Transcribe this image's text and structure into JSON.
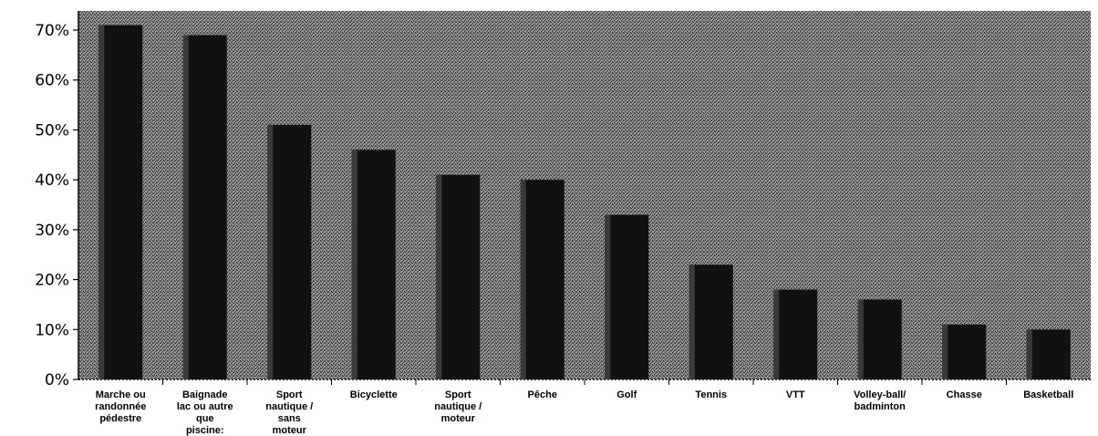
{
  "chart_data": {
    "type": "bar",
    "title": "",
    "xlabel": "",
    "ylabel": "",
    "ylim": [
      0,
      70
    ],
    "yticks": [
      0,
      10,
      20,
      30,
      40,
      50,
      60,
      70
    ],
    "ytick_labels": [
      "0%",
      "10%",
      "20%",
      "30%",
      "40%",
      "50%",
      "60%",
      "70%"
    ],
    "grid": false,
    "legend": "none",
    "categories": [
      "Marche ou randonnée pédestre",
      "Baignade lac ou autre que piscine:",
      "Sport nautique / sans moteur",
      "Bicyclette",
      "Sport nautique / moteur",
      "Pêche",
      "Golf",
      "Tennis",
      "VTT",
      "Volley-ball/ badminton",
      "Chasse",
      "Basketball"
    ],
    "category_label_lines": [
      [
        "Marche ou",
        "randonnée",
        "pédestre"
      ],
      [
        "Baignade",
        "lac ou autre",
        "que",
        "piscine:"
      ],
      [
        "Sport",
        "nautique /",
        "sans",
        "moteur"
      ],
      [
        "Bicyclette"
      ],
      [
        "Sport",
        "nautique /",
        "moteur"
      ],
      [
        "Pêche"
      ],
      [
        "Golf"
      ],
      [
        "Tennis"
      ],
      [
        "VTT"
      ],
      [
        "Volley-ball/",
        "badminton"
      ],
      [
        "Chasse"
      ],
      [
        "Basketball"
      ]
    ],
    "values": [
      71,
      69,
      51,
      46,
      41,
      40,
      33,
      23,
      18,
      16,
      11,
      10
    ],
    "colors": {
      "background": "#7a7a7a",
      "bar": "#111111",
      "axis": "#000000"
    }
  }
}
